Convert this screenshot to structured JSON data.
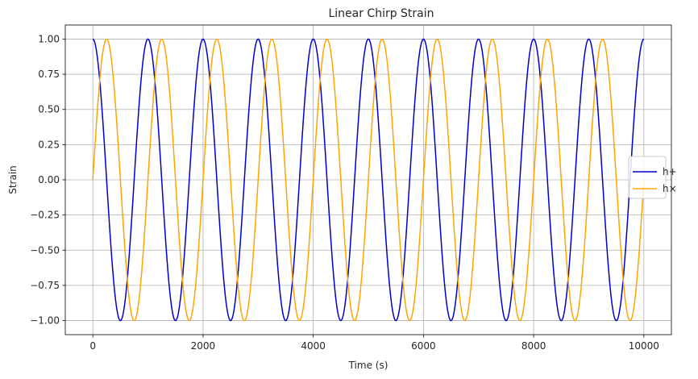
{
  "chart_data": {
    "type": "line",
    "title": "Linear Chirp Strain",
    "xlabel": "Time (s)",
    "ylabel": "Strain",
    "xlim": [
      -500,
      10500
    ],
    "ylim": [
      -1.1,
      1.1
    ],
    "xticks": [
      0,
      2000,
      4000,
      6000,
      8000,
      10000
    ],
    "xtick_labels": [
      "0",
      "2000",
      "4000",
      "6000",
      "8000",
      "10000"
    ],
    "yticks": [
      -1.0,
      -0.75,
      -0.5,
      -0.25,
      0.0,
      0.25,
      0.5,
      0.75,
      1.0
    ],
    "ytick_labels": [
      "−1.00",
      "−0.75",
      "−0.50",
      "−0.25",
      "0.00",
      "0.25",
      "0.50",
      "0.75",
      "1.00"
    ],
    "grid": true,
    "legend_position": "center-right",
    "series": [
      {
        "name": "h+",
        "color": "#0000cc",
        "function": "cos",
        "x": [
          0,
          250,
          500,
          750,
          1000,
          1250,
          1500,
          1750,
          2000,
          2250,
          2500,
          2750,
          3000,
          3250,
          3500,
          3750,
          4000,
          4250,
          4500,
          4750,
          5000,
          5250,
          5500,
          5750,
          6000,
          6250,
          6500,
          6750,
          7000,
          7250,
          7500,
          7750,
          8000,
          8250,
          8500,
          8750,
          9000,
          9250,
          9500,
          9750,
          10000
        ],
        "y": [
          1.0,
          0.0,
          -1.0,
          0.0,
          1.0,
          0.0,
          -1.0,
          0.0,
          1.0,
          0.0,
          -1.0,
          0.0,
          1.0,
          0.0,
          -1.0,
          0.0,
          1.0,
          0.0,
          -1.0,
          0.0,
          1.0,
          0.0,
          -1.0,
          0.0,
          1.0,
          0.0,
          -1.0,
          0.0,
          1.0,
          0.0,
          -1.0,
          0.0,
          1.0,
          0.0,
          -1.0,
          0.0,
          1.0,
          0.0,
          -1.0,
          0.0,
          0.97
        ]
      },
      {
        "name": "h×",
        "color": "#ffa500",
        "function": "sin",
        "x": [
          0,
          250,
          500,
          750,
          1000,
          1250,
          1500,
          1750,
          2000,
          2250,
          2500,
          2750,
          3000,
          3250,
          3500,
          3750,
          4000,
          4250,
          4500,
          4750,
          5000,
          5250,
          5500,
          5750,
          6000,
          6250,
          6500,
          6750,
          7000,
          7250,
          7500,
          7750,
          8000,
          8250,
          8500,
          8750,
          9000,
          9250,
          9500,
          9750,
          10000
        ],
        "y": [
          0.0,
          1.0,
          0.0,
          -1.0,
          0.0,
          1.0,
          0.0,
          -1.0,
          0.0,
          1.0,
          0.0,
          -1.0,
          0.0,
          1.0,
          0.0,
          -1.0,
          0.0,
          1.0,
          0.0,
          -1.0,
          0.0,
          1.0,
          0.0,
          -1.0,
          0.0,
          1.0,
          0.0,
          -1.0,
          0.0,
          1.0,
          0.0,
          -1.0,
          0.0,
          1.0,
          0.0,
          -1.0,
          0.0,
          1.0,
          0.0,
          -1.0,
          0.25
        ]
      }
    ]
  }
}
